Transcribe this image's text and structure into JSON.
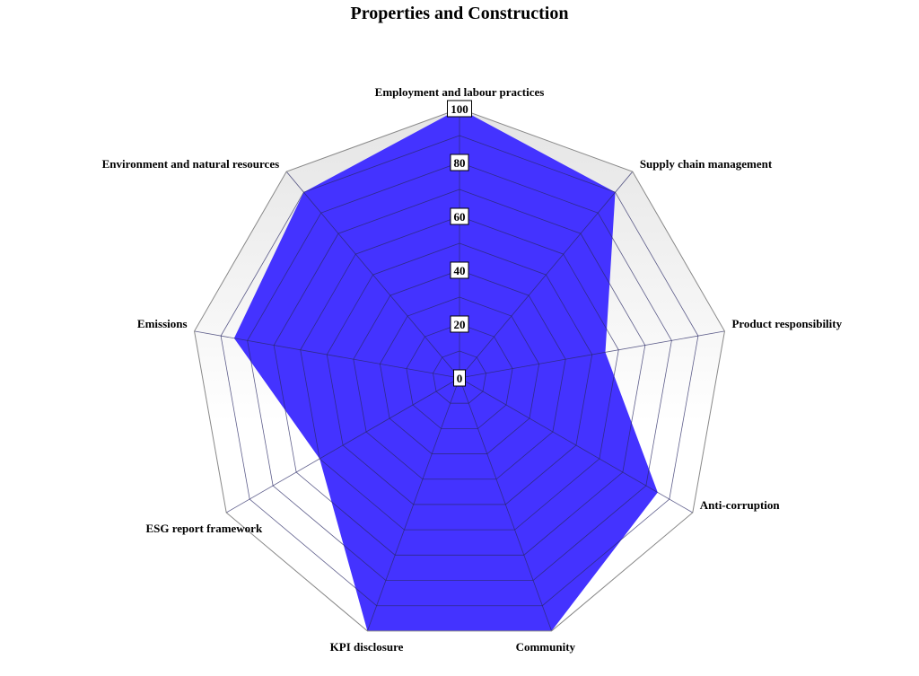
{
  "chart_data": {
    "type": "radar",
    "title": "Properties and Construction",
    "categories": [
      "Employment and labour practices",
      "Supply chain management",
      "Product responsibility",
      "Anti-corruption",
      "Community",
      "KPI disclosure",
      "ESG report framework",
      "Emissions",
      "Environment and natural resources"
    ],
    "series": [
      {
        "values": [
          100,
          90,
          55,
          85,
          100,
          100,
          60,
          85,
          90
        ]
      }
    ],
    "rlim": [
      0,
      100
    ],
    "ticks": [
      "0",
      "20",
      "40",
      "60",
      "80",
      "100"
    ],
    "grid_levels": [
      0,
      10,
      20,
      30,
      40,
      50,
      60,
      70,
      80,
      90,
      100
    ],
    "colors": {
      "fill": "#4433ff",
      "grid": "#888888",
      "inner_grid": "#2a2a66",
      "background_gradient_top": "#e4e4e4",
      "background_gradient_bottom": "#ffffff"
    }
  }
}
